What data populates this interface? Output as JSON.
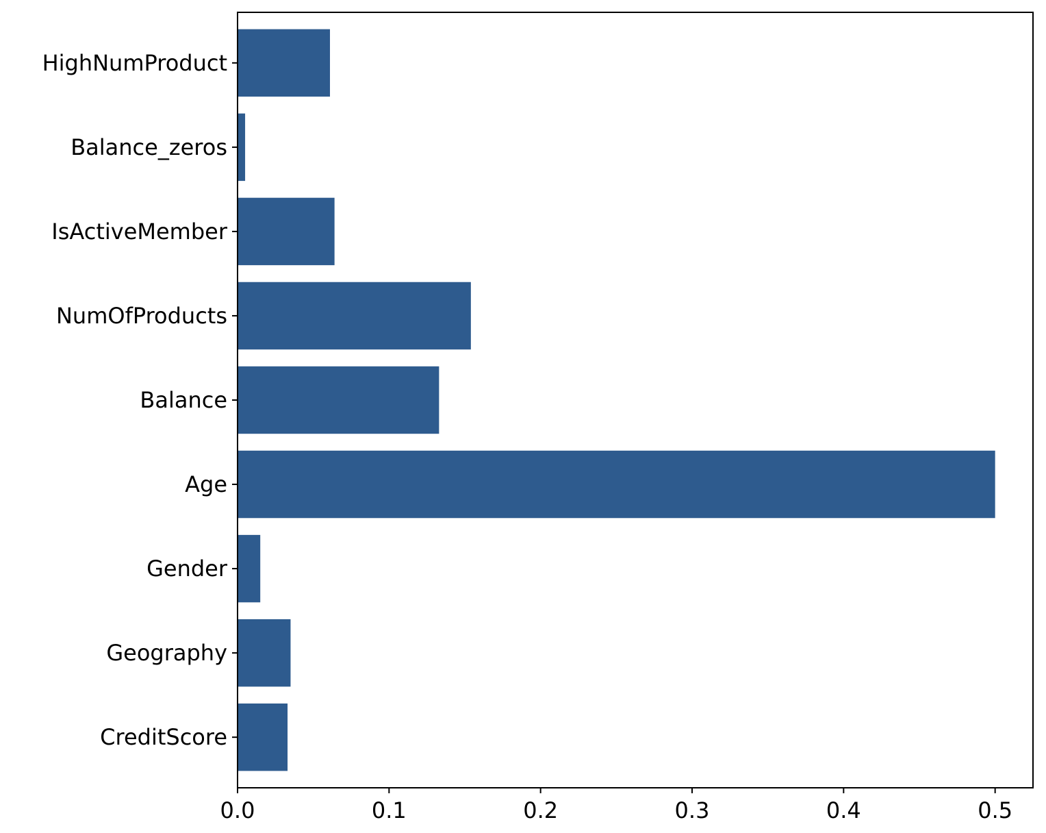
{
  "chart_data": {
    "type": "bar",
    "orientation": "horizontal",
    "title": "",
    "xlabel": "",
    "ylabel": "",
    "categories": [
      "CreditScore",
      "Geography",
      "Gender",
      "Age",
      "Balance",
      "NumOfProducts",
      "IsActiveMember",
      "Balance_zeros",
      "HighNumProduct"
    ],
    "values": [
      0.033,
      0.035,
      0.015,
      0.5,
      0.133,
      0.154,
      0.064,
      0.005,
      0.061
    ],
    "xlim": [
      0,
      0.525
    ],
    "xticks": [
      0.0,
      0.1,
      0.2,
      0.3,
      0.4,
      0.5
    ],
    "xtick_labels": [
      "0.0",
      "0.1",
      "0.2",
      "0.3",
      "0.4",
      "0.5"
    ],
    "grid": false,
    "legend": "none",
    "bar_color": "#2e5b8e"
  }
}
